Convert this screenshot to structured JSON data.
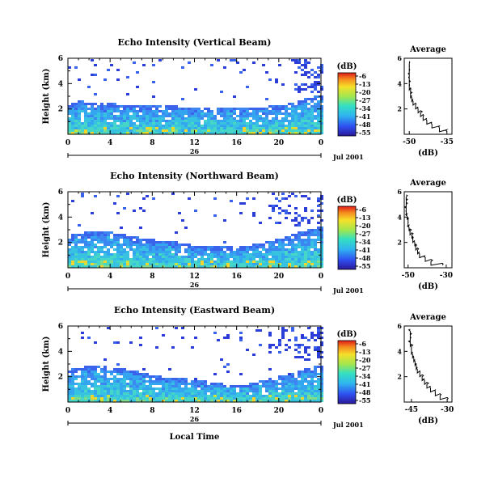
{
  "chart_data": [
    {
      "type": "heatmap",
      "title": "Echo Intensity (Vertical Beam)",
      "ylabel": "Height (km)",
      "yticks": [
        "6",
        "4",
        "2"
      ],
      "xticks": [
        "0",
        "4",
        "8",
        "12",
        "16",
        "20",
        "0"
      ],
      "xlim": [
        0,
        24
      ],
      "ylim": [
        0,
        6
      ],
      "day_label": "26",
      "date_label": "Jul 2001",
      "colorbar": {
        "unit": "(dB)",
        "ticks": [
          "-6",
          "-13",
          "-20",
          "-27",
          "-34",
          "-41",
          "-48",
          "-55"
        ],
        "range": [
          -55,
          -6
        ]
      },
      "echo_top_km": [
        2.2,
        2.5,
        2.4,
        2.3,
        2.3,
        2.2,
        2.2,
        2.1,
        2.1,
        2.1,
        2.1,
        2.0,
        2.0,
        2.0,
        2.0,
        2.0,
        2.0,
        2.0,
        2.0,
        2.1,
        2.1,
        2.3,
        2.6,
        2.9,
        3.0
      ],
      "average_profile": {
        "title": "Average",
        "xlabel": "(dB)",
        "xticks": [
          "-50",
          "-35"
        ],
        "yticks": [
          "6",
          "4",
          "2"
        ],
        "xlim": [
          -52,
          -33
        ],
        "ylim": [
          0,
          6
        ],
        "height_km": [
          0.2,
          0.5,
          0.8,
          1.1,
          1.4,
          1.7,
          2.0,
          2.3,
          2.6,
          2.9,
          3.2,
          3.5,
          3.8,
          4.1,
          4.4,
          4.7,
          5.0,
          5.3,
          5.6
        ],
        "db": [
          -35,
          -38,
          -41,
          -43,
          -44.5,
          -45.5,
          -46.5,
          -47.5,
          -48.5,
          -49,
          -49.5,
          -49.5,
          -50,
          -50,
          -50,
          -50,
          -50,
          -50,
          -50
        ]
      }
    },
    {
      "type": "heatmap",
      "title": "Echo Intensity (Northward Beam)",
      "ylabel": "Height (km)",
      "yticks": [
        "6",
        "4",
        "2"
      ],
      "xticks": [
        "0",
        "4",
        "8",
        "12",
        "16",
        "20",
        "0"
      ],
      "xlim": [
        0,
        24
      ],
      "ylim": [
        0,
        6
      ],
      "day_label": "26",
      "date_label": "Jul 2001",
      "colorbar": {
        "unit": "(dB)",
        "ticks": [
          "-6",
          "-13",
          "-20",
          "-27",
          "-34",
          "-41",
          "-48",
          "-55"
        ],
        "range": [
          -55,
          -6
        ]
      },
      "echo_top_km": [
        2.4,
        2.6,
        2.7,
        2.8,
        2.7,
        2.5,
        2.4,
        2.2,
        2.1,
        2.0,
        1.9,
        1.8,
        1.6,
        1.6,
        1.5,
        1.5,
        1.5,
        1.6,
        1.8,
        2.0,
        2.2,
        2.4,
        2.8,
        3.0,
        3.1
      ],
      "average_profile": {
        "title": "Average",
        "xlabel": "(dB)",
        "xticks": [
          "-50",
          "-30"
        ],
        "yticks": [
          "6",
          "4",
          "2"
        ],
        "xlim": [
          -52,
          -27
        ],
        "ylim": [
          0,
          6
        ],
        "height_km": [
          0.2,
          0.5,
          0.8,
          1.1,
          1.4,
          1.7,
          2.0,
          2.3,
          2.6,
          2.9,
          3.2,
          3.5,
          3.8,
          4.1,
          4.4,
          4.7,
          5.0,
          5.3,
          5.6
        ],
        "db": [
          -32,
          -38,
          -41,
          -44,
          -45,
          -46,
          -46.5,
          -47.5,
          -48,
          -49,
          -49.5,
          -50,
          -50,
          -50.5,
          -51,
          -51,
          -51,
          -51,
          -51
        ]
      }
    },
    {
      "type": "heatmap",
      "title": "Echo Intensity (Eastward Beam)",
      "ylabel": "Height (km)",
      "yticks": [
        "6",
        "4",
        "2"
      ],
      "xticks": [
        "0",
        "4",
        "8",
        "12",
        "16",
        "20",
        "0"
      ],
      "xlim": [
        0,
        24
      ],
      "ylim": [
        0,
        6
      ],
      "day_label": "26",
      "date_label": "Jul 2001",
      "xlabel": "Local Time",
      "colorbar": {
        "unit": "(dB)",
        "ticks": [
          "-6",
          "-13",
          "-20",
          "-27",
          "-34",
          "-41",
          "-48",
          "-55"
        ],
        "range": [
          -55,
          -6
        ]
      },
      "echo_top_km": [
        2.4,
        2.6,
        2.7,
        2.7,
        2.6,
        2.5,
        2.4,
        2.2,
        2.0,
        1.9,
        1.8,
        1.7,
        1.6,
        1.5,
        1.4,
        1.3,
        1.2,
        1.3,
        1.5,
        1.7,
        1.9,
        2.1,
        2.4,
        2.6,
        2.8
      ],
      "average_profile": {
        "title": "Average",
        "xlabel": "(dB)",
        "xticks": [
          "-45",
          "-30"
        ],
        "yticks": [
          "6",
          "4",
          "2"
        ],
        "xlim": [
          -48,
          -28
        ],
        "ylim": [
          0,
          6
        ],
        "height_km": [
          0.2,
          0.5,
          0.8,
          1.1,
          1.4,
          1.7,
          2.0,
          2.3,
          2.6,
          2.9,
          3.2,
          3.5,
          3.8,
          4.1,
          4.4,
          4.7,
          5.0,
          5.3,
          5.6
        ],
        "db": [
          -30,
          -33,
          -35,
          -37,
          -38.5,
          -39.5,
          -40.5,
          -41.5,
          -42.5,
          -43,
          -43.5,
          -44,
          -44.5,
          -45,
          -45,
          -45.5,
          -45.5,
          -45.5,
          -45.5
        ]
      }
    }
  ]
}
